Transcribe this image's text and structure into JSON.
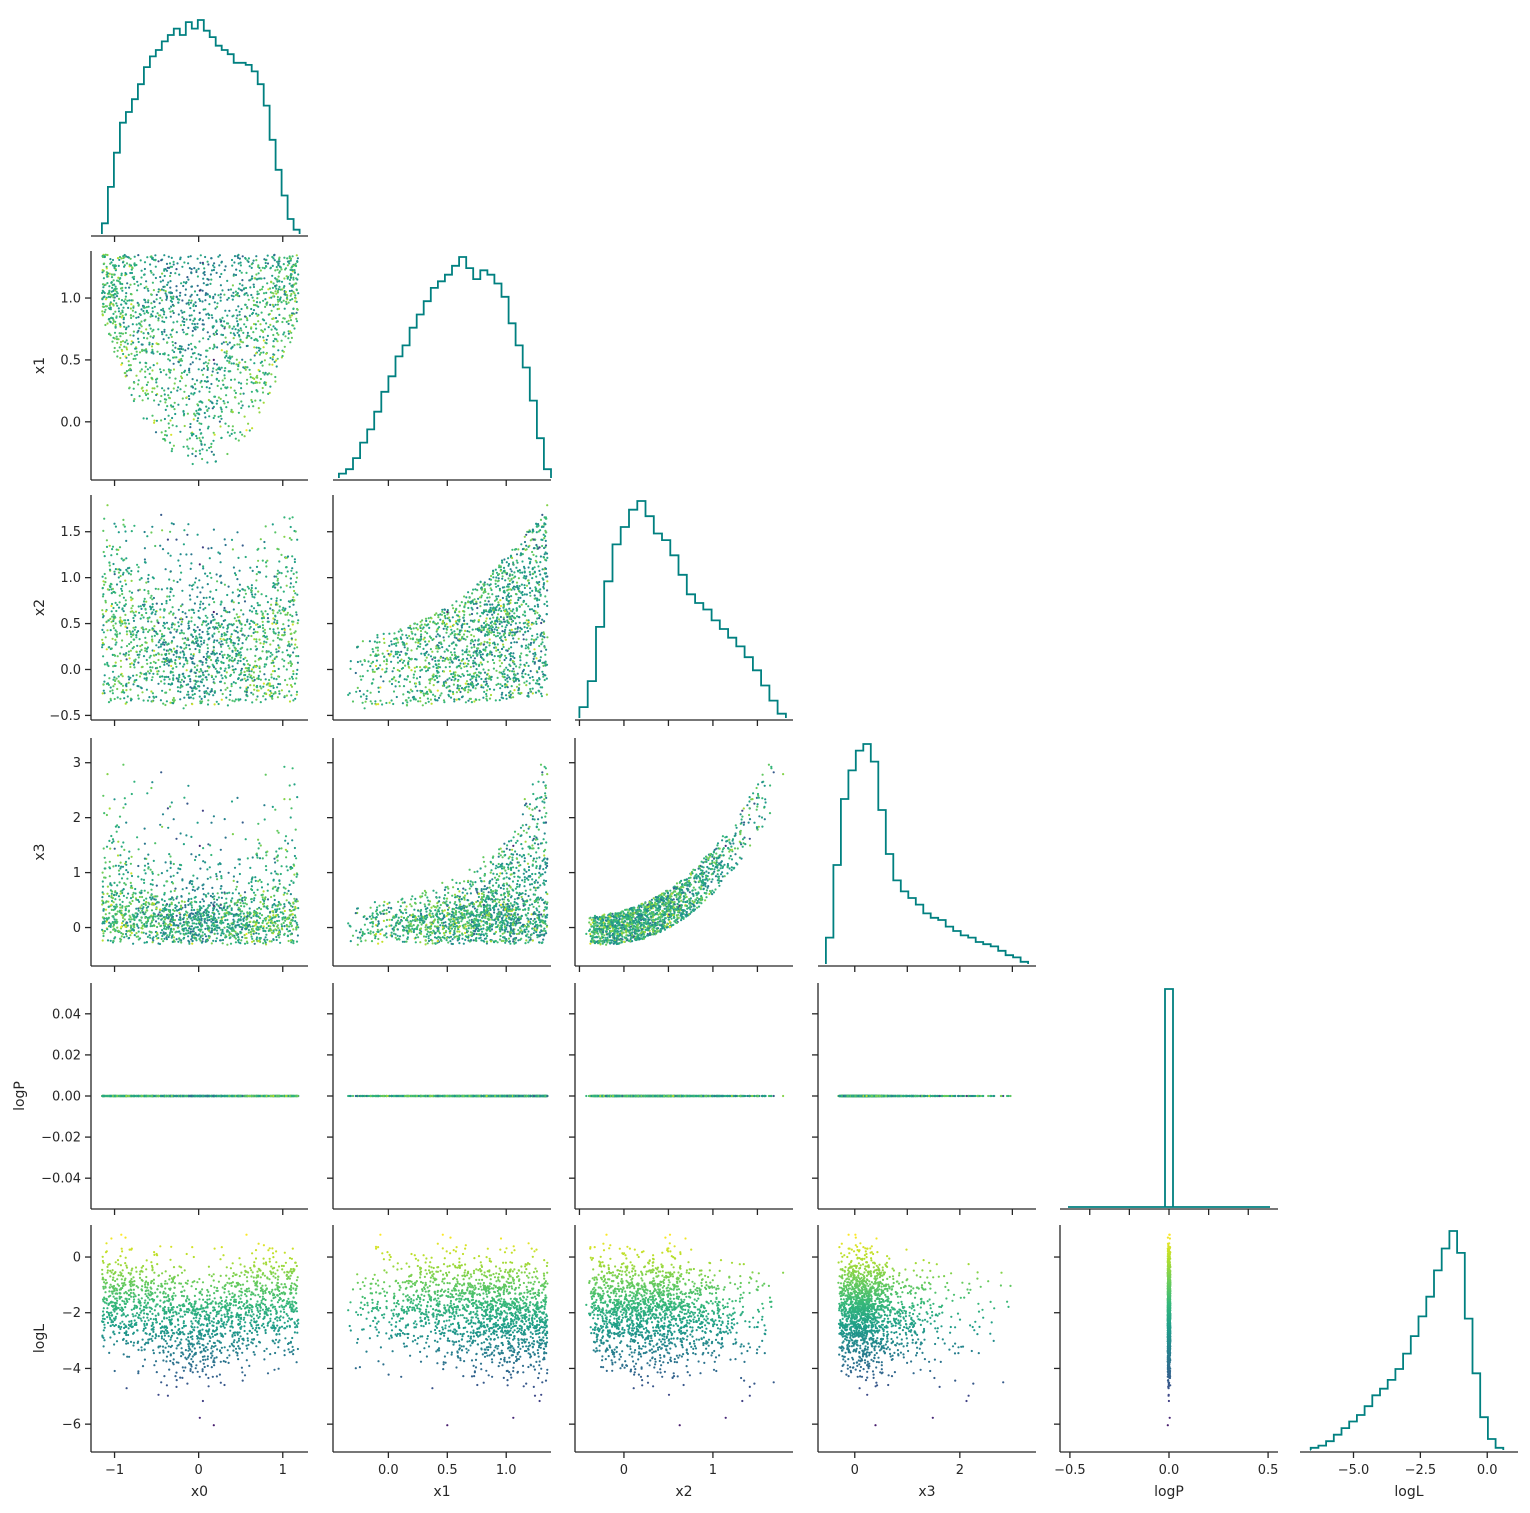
{
  "chart_data": {
    "type": "scatter",
    "subtype": "corner-plot",
    "title": "",
    "variables": [
      "x0",
      "x1",
      "x2",
      "x3",
      "logP",
      "logL"
    ],
    "colormap": "viridis",
    "color_variable": "logL",
    "hist_color": "#008080",
    "grid": false,
    "ranges": {
      "x0": [
        -1.28,
        1.3
      ],
      "x1": [
        -0.47,
        1.38
      ],
      "x2": [
        -0.55,
        1.9
      ],
      "x3": [
        -0.7,
        3.45
      ],
      "logP": [
        -0.055,
        0.055
      ],
      "logL": [
        -7.0,
        1.15
      ]
    },
    "ticks": {
      "x0": {
        "values": [
          -1,
          0,
          1
        ],
        "labels": [
          "−1",
          "0",
          "1"
        ]
      },
      "x1": {
        "values": [
          0.0,
          0.5,
          1.0
        ],
        "labels": [
          "0.0",
          "0.5",
          "1.0"
        ]
      },
      "x2": {
        "values": [
          -0.5,
          0.0,
          0.5,
          1.0,
          1.5
        ],
        "labels": [
          "−0.5",
          "0.0",
          "0.5",
          "1.0",
          "1.5"
        ]
      },
      "x2_bottom": {
        "values": [
          0,
          1
        ],
        "labels": [
          "0",
          "1"
        ]
      },
      "x3": {
        "values": [
          0,
          1,
          2,
          3
        ],
        "labels": [
          "0",
          "1",
          "2",
          "3"
        ]
      },
      "x3_bottom": {
        "values": [
          0,
          2
        ],
        "labels": [
          "0",
          "2"
        ]
      },
      "logP": {
        "values": [
          -0.04,
          -0.02,
          0.0,
          0.02,
          0.04
        ],
        "labels": [
          "−0.04",
          "−0.02",
          "0.00",
          "0.02",
          "0.04"
        ]
      },
      "logP_bottom": {
        "values": [
          -0.5,
          0.0,
          0.5
        ],
        "labels": [
          "−0.5",
          "0.0",
          "0.5"
        ],
        "range": [
          -0.55,
          0.55
        ]
      },
      "logL": {
        "values": [
          -6,
          -4,
          -2,
          0
        ],
        "labels": [
          "−6",
          "−4",
          "−2",
          "0"
        ]
      },
      "logL_bottom": {
        "values": [
          -5.0,
          -2.5,
          0.0
        ],
        "labels": [
          "−5.0",
          "−2.5",
          "0.0"
        ],
        "range": [
          -7.0,
          1.15
        ]
      }
    },
    "histograms": {
      "x0": {
        "range": [
          -1.15,
          1.2
        ],
        "values": [
          0.05,
          0.22,
          0.38,
          0.52,
          0.57,
          0.63,
          0.7,
          0.78,
          0.83,
          0.86,
          0.9,
          0.93,
          0.96,
          0.93,
          0.99,
          0.96,
          1.0,
          0.95,
          0.92,
          0.88,
          0.86,
          0.84,
          0.8,
          0.8,
          0.79,
          0.76,
          0.7,
          0.6,
          0.44,
          0.3,
          0.18,
          0.07,
          0.02
        ]
      },
      "x1": {
        "range": [
          -0.42,
          1.38
        ],
        "values": [
          0.02,
          0.04,
          0.09,
          0.16,
          0.22,
          0.3,
          0.39,
          0.46,
          0.55,
          0.6,
          0.68,
          0.74,
          0.8,
          0.86,
          0.89,
          0.92,
          0.96,
          1.0,
          0.95,
          0.9,
          0.94,
          0.92,
          0.88,
          0.82,
          0.7,
          0.6,
          0.5,
          0.35,
          0.18,
          0.04
        ]
      },
      "x2": {
        "range": [
          -0.5,
          1.82
        ],
        "values": [
          0.05,
          0.17,
          0.42,
          0.63,
          0.8,
          0.88,
          0.96,
          1.0,
          0.93,
          0.85,
          0.82,
          0.75,
          0.66,
          0.57,
          0.53,
          0.5,
          0.45,
          0.41,
          0.37,
          0.33,
          0.28,
          0.22,
          0.15,
          0.08,
          0.02
        ]
      },
      "x3": {
        "range": [
          -0.55,
          3.3
        ],
        "values": [
          0.12,
          0.45,
          0.75,
          0.88,
          0.97,
          1.0,
          0.92,
          0.7,
          0.5,
          0.38,
          0.33,
          0.3,
          0.27,
          0.23,
          0.21,
          0.2,
          0.17,
          0.15,
          0.13,
          0.12,
          0.1,
          0.09,
          0.08,
          0.06,
          0.04,
          0.03,
          0.01
        ]
      },
      "logP": {
        "range": [
          -0.02,
          0.02
        ],
        "values": [
          1.0
        ]
      },
      "logL": {
        "range": [
          -6.6,
          0.6
        ],
        "values": [
          0.01,
          0.02,
          0.04,
          0.07,
          0.1,
          0.13,
          0.16,
          0.2,
          0.25,
          0.28,
          0.32,
          0.37,
          0.44,
          0.52,
          0.61,
          0.7,
          0.82,
          0.92,
          1.0,
          0.9,
          0.6,
          0.35,
          0.15,
          0.05,
          0.01
        ]
      }
    },
    "shapes": {
      "x1": {
        "x0_min": -1.15,
        "x0_max": 1.2,
        "bottom_mid": -0.35,
        "bottom_edge": 0.85,
        "top": 1.35
      },
      "x2": {
        "bottom": -0.45,
        "top": 1.78
      },
      "x3": {
        "bottom": -0.45,
        "top": 3.2
      }
    },
    "n_points_drawn": 1700
  }
}
